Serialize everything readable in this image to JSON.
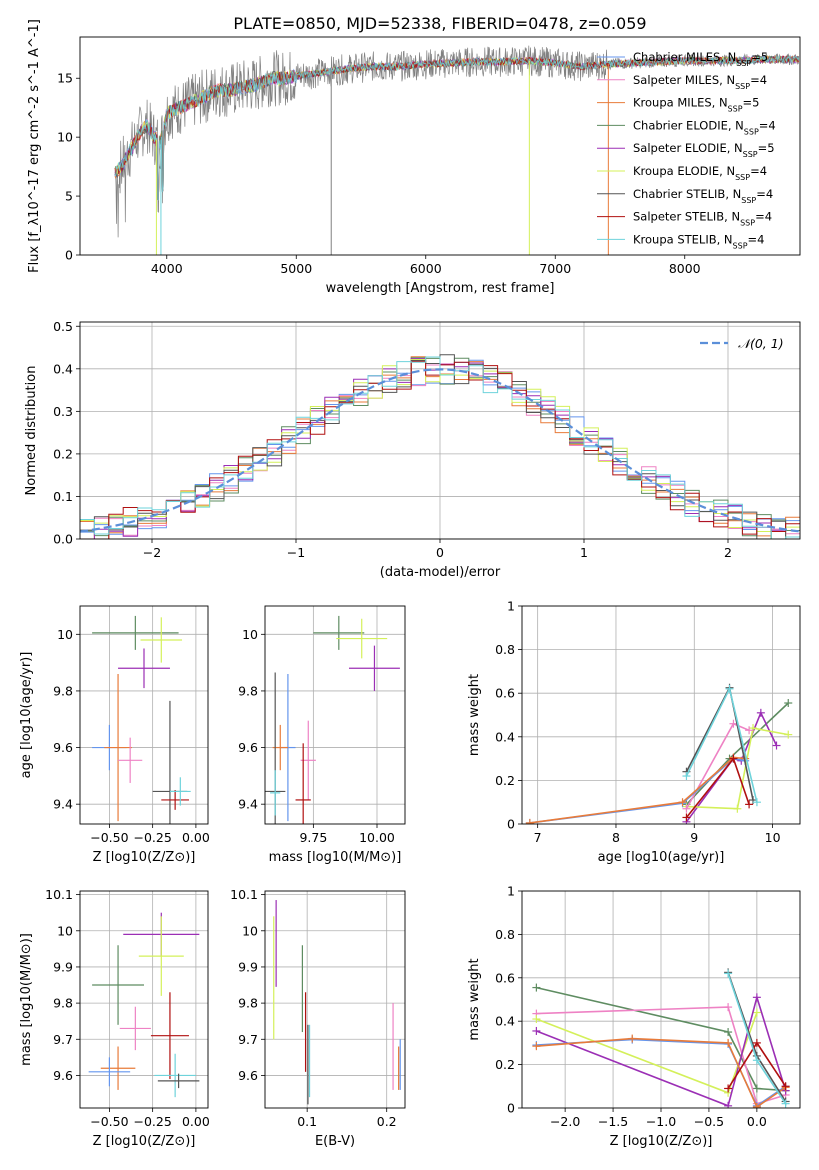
{
  "figure_title": "PLATE=0850, MJD=52338, FIBERID=0478, z=0.059",
  "colors": {
    "data": "#808080",
    "Chabrier MILES": "#6495ed",
    "Salpeter MILES": "#ee82c4",
    "Kroupa MILES": "#e87b3a",
    "Chabrier ELODIE": "#5e8c61",
    "Salpeter ELODIE": "#9b2fb5",
    "Kroupa ELODIE": "#d4f05a",
    "Chabrier STELIB": "#555555",
    "Salpeter STELIB": "#b01010",
    "Kroupa STELIB": "#6ed3db",
    "gaussian": "#5b8fd9"
  },
  "chart_data": [
    {
      "id": "spectrum",
      "type": "line",
      "title": "",
      "xlabel": "wavelength [Angstrom, rest frame]",
      "ylabel": "Flux [f_λ10^-17 erg cm^-2 s^-1 A^-1]",
      "xlim": [
        3330,
        8890
      ],
      "ylim": [
        0,
        18.5
      ],
      "xticks": [
        4000,
        5000,
        6000,
        7000,
        8000
      ],
      "yticks": [
        0,
        5,
        10,
        15
      ],
      "grid": false,
      "legend_position": "bottom-right",
      "legend": [
        {
          "name": "Chabrier MILES",
          "nssp": "5"
        },
        {
          "name": "Salpeter MILES",
          "nssp": "4"
        },
        {
          "name": "Kroupa MILES",
          "nssp": "5"
        },
        {
          "name": "Chabrier ELODIE",
          "nssp": "4"
        },
        {
          "name": "Salpeter ELODIE",
          "nssp": "5"
        },
        {
          "name": "Kroupa ELODIE",
          "nssp": "4"
        },
        {
          "name": "Chabrier STELIB",
          "nssp": "4"
        },
        {
          "name": "Salpeter STELIB",
          "nssp": "4"
        },
        {
          "name": "Kroupa STELIB",
          "nssp": "4"
        }
      ],
      "series_x": [
        3600,
        3650,
        3700,
        3750,
        3800,
        3850,
        3900,
        3950,
        4000,
        4100,
        4200,
        4300,
        4400,
        4500,
        4600,
        4700,
        4800,
        4900,
        5000,
        5200,
        5400,
        5600,
        5800,
        6000,
        6200,
        6400,
        6600,
        6800,
        7000,
        7200,
        7400,
        7600,
        7800,
        8000,
        8200,
        8400,
        8600,
        8800
      ],
      "series_y": [
        7.0,
        7.5,
        8.5,
        9.5,
        10.5,
        11.0,
        10.0,
        9.5,
        12.0,
        12.5,
        13.0,
        13.5,
        14.0,
        14.0,
        14.3,
        14.5,
        15.0,
        15.0,
        15.2,
        15.5,
        15.8,
        16.0,
        16.0,
        16.2,
        16.3,
        16.4,
        16.4,
        16.5,
        16.3,
        16.0,
        16.2,
        16.3,
        16.4,
        16.5,
        16.5,
        16.5,
        16.6,
        16.6
      ]
    },
    {
      "id": "residuals",
      "type": "bar",
      "title": "",
      "xlabel": "(data-model)/error",
      "ylabel": "Normed distribution",
      "xlim": [
        -2.5,
        2.5
      ],
      "ylim": [
        0,
        0.51
      ],
      "xticks": [
        -2,
        -1,
        0,
        1,
        2
      ],
      "yticks": [
        0.0,
        0.1,
        0.2,
        0.3,
        0.4,
        0.5
      ],
      "grid": true,
      "legend_position": "top-right",
      "gaussian_label": "𝒩(0, 1)",
      "bin_width": 0.1
    },
    {
      "id": "age-vs-metallicity",
      "type": "scatter",
      "title": "",
      "xlabel": "Z [log10(Z/Z⊙)]",
      "ylabel": "age [log10(age/yr)]",
      "xlim": [
        -0.67,
        0.07
      ],
      "ylim": [
        9.33,
        10.1
      ],
      "xticks": [
        -0.5,
        -0.25,
        0.0
      ],
      "xticklabels": [
        "−0.50",
        "−0.25",
        "0.00"
      ],
      "yticks": [
        9.4,
        9.6,
        9.8,
        10.0
      ],
      "grid": true,
      "points": [
        {
          "series": "Chabrier ELODIE",
          "x": -0.35,
          "y": 10.005,
          "xerr": 0.25,
          "yerr": 0.06
        },
        {
          "series": "Kroupa ELODIE",
          "x": -0.2,
          "y": 9.98,
          "xerr": 0.12,
          "yerr": 0.08
        },
        {
          "series": "Salpeter ELODIE",
          "x": -0.3,
          "y": 9.88,
          "xerr": 0.15,
          "yerr": 0.07
        },
        {
          "series": "Chabrier MILES",
          "x": -0.5,
          "y": 9.6,
          "xerr": 0.1,
          "yerr": 0.08
        },
        {
          "series": "Kroupa MILES",
          "x": -0.45,
          "y": 9.6,
          "xerr": 0.08,
          "yerr": 0.26
        },
        {
          "series": "Salpeter MILES",
          "x": -0.38,
          "y": 9.555,
          "xerr": 0.07,
          "yerr": 0.08
        },
        {
          "series": "Chabrier STELIB",
          "x": -0.15,
          "y": 9.445,
          "xerr": 0.1,
          "yerr": 0.32
        },
        {
          "series": "Salpeter STELIB",
          "x": -0.12,
          "y": 9.415,
          "xerr": 0.08,
          "yerr": 0.035
        },
        {
          "series": "Kroupa STELIB",
          "x": -0.09,
          "y": 9.445,
          "xerr": 0.06,
          "yerr": 0.05
        }
      ]
    },
    {
      "id": "age-vs-mass",
      "type": "scatter",
      "title": "",
      "xlabel": "mass [log10(M/M⊙)]",
      "ylabel": "",
      "xlim": [
        9.56,
        10.11
      ],
      "ylim": [
        9.33,
        10.1
      ],
      "xticks": [
        9.75,
        10.0
      ],
      "xticklabels": [
        "9.75",
        "10.00"
      ],
      "yticks": [
        9.4,
        9.6,
        9.8,
        10.0
      ],
      "grid": true,
      "points": [
        {
          "series": "Chabrier ELODIE",
          "x": 9.85,
          "y": 10.005,
          "xerr": 0.1,
          "yerr": 0.06
        },
        {
          "series": "Kroupa ELODIE",
          "x": 9.94,
          "y": 9.985,
          "xerr": 0.1,
          "yerr": 0.07
        },
        {
          "series": "Salpeter ELODIE",
          "x": 9.99,
          "y": 9.88,
          "xerr": 0.1,
          "yerr": 0.08
        },
        {
          "series": "Chabrier MILES",
          "x": 9.65,
          "y": 9.6,
          "xerr": 0.03,
          "yerr": 0.26
        },
        {
          "series": "Kroupa MILES",
          "x": 9.62,
          "y": 9.6,
          "xerr": 0.03,
          "yerr": 0.08
        },
        {
          "series": "Salpeter MILES",
          "x": 9.73,
          "y": 9.555,
          "xerr": 0.03,
          "yerr": 0.14
        },
        {
          "series": "Chabrier STELIB",
          "x": 9.6,
          "y": 9.445,
          "xerr": 0.04,
          "yerr": 0.42
        },
        {
          "series": "Salpeter STELIB",
          "x": 9.71,
          "y": 9.415,
          "xerr": 0.03,
          "yerr": 0.2
        },
        {
          "series": "Kroupa STELIB",
          "x": 9.6,
          "y": 9.44,
          "xerr": 0.02,
          "yerr": 0.08
        }
      ]
    },
    {
      "id": "mass-weight-vs-age",
      "type": "line",
      "title": "",
      "xlabel": "age [log10(age/yr)]",
      "ylabel": "mass weight",
      "xlim": [
        6.8,
        10.35
      ],
      "ylim": [
        0,
        1
      ],
      "xticks": [
        7,
        8,
        9,
        10
      ],
      "yticks": [
        0.0,
        0.2,
        0.4,
        0.6,
        0.8,
        1.0
      ],
      "grid": true,
      "series": [
        {
          "series": "Chabrier ELODIE",
          "x": [
            8.9,
            9.45,
            10.2
          ],
          "y": [
            0.09,
            0.3,
            0.555
          ]
        },
        {
          "series": "Salpeter ELODIE",
          "x": [
            8.9,
            9.5,
            9.6,
            9.85,
            10.05
          ],
          "y": [
            0.01,
            0.3,
            0.29,
            0.51,
            0.36
          ]
        },
        {
          "series": "Kroupa ELODIE",
          "x": [
            8.9,
            9.55,
            9.75,
            10.2
          ],
          "y": [
            0.08,
            0.07,
            0.44,
            0.41
          ]
        },
        {
          "series": "Salpeter MILES",
          "x": [
            8.9,
            9.5,
            9.7
          ],
          "y": [
            0.07,
            0.46,
            0.43
          ]
        },
        {
          "series": "Chabrier MILES",
          "x": [
            6.9,
            8.85,
            9.5,
            9.65
          ],
          "y": [
            0.005,
            0.095,
            0.3,
            0.29
          ]
        },
        {
          "series": "Kroupa MILES",
          "x": [
            6.9,
            8.85,
            9.5,
            9.65
          ],
          "y": [
            0.005,
            0.1,
            0.305,
            0.3
          ]
        },
        {
          "series": "Chabrier STELIB",
          "x": [
            8.9,
            9.45,
            9.75
          ],
          "y": [
            0.24,
            0.625,
            0.11
          ]
        },
        {
          "series": "Salpeter STELIB",
          "x": [
            8.9,
            9.5,
            9.7
          ],
          "y": [
            0.03,
            0.3,
            0.09
          ]
        },
        {
          "series": "Kroupa STELIB",
          "x": [
            8.9,
            9.45,
            9.8
          ],
          "y": [
            0.22,
            0.62,
            0.1
          ]
        }
      ]
    },
    {
      "id": "mass-vs-metallicity",
      "type": "scatter",
      "title": "",
      "xlabel": "Z [log10(Z/Z⊙)]",
      "ylabel": "mass [log10(M/M⊙)]",
      "xlim": [
        -0.67,
        0.07
      ],
      "ylim": [
        9.51,
        10.11
      ],
      "xticks": [
        -0.5,
        -0.25,
        0.0
      ],
      "xticklabels": [
        "−0.50",
        "−0.25",
        "0.00"
      ],
      "yticks": [
        9.6,
        9.7,
        9.8,
        9.9,
        10.0,
        10.1
      ],
      "grid": true,
      "points": [
        {
          "series": "Salpeter ELODIE",
          "x": -0.2,
          "y": 9.99,
          "xerr": 0.22,
          "yerr": 0.06
        },
        {
          "series": "Kroupa ELODIE",
          "x": -0.2,
          "y": 9.93,
          "xerr": 0.13,
          "yerr": 0.11
        },
        {
          "series": "Chabrier ELODIE",
          "x": -0.45,
          "y": 9.85,
          "xerr": 0.15,
          "yerr": 0.11
        },
        {
          "series": "Salpeter MILES",
          "x": -0.35,
          "y": 9.73,
          "xerr": 0.09,
          "yerr": 0.06
        },
        {
          "series": "Salpeter STELIB",
          "x": -0.15,
          "y": 9.71,
          "xerr": 0.11,
          "yerr": 0.12
        },
        {
          "series": "Kroupa MILES",
          "x": -0.45,
          "y": 9.62,
          "xerr": 0.1,
          "yerr": 0.06
        },
        {
          "series": "Chabrier MILES",
          "x": -0.5,
          "y": 9.61,
          "xerr": 0.12,
          "yerr": 0.04
        },
        {
          "series": "Kroupa STELIB",
          "x": -0.12,
          "y": 9.6,
          "xerr": 0.12,
          "yerr": 0.06
        },
        {
          "series": "Chabrier STELIB",
          "x": -0.1,
          "y": 9.585,
          "xerr": 0.12,
          "yerr": 0.02
        }
      ]
    },
    {
      "id": "mass-vs-extinction",
      "type": "scatter",
      "title": "",
      "xlabel": "E(B-V)",
      "ylabel": "",
      "xlim": [
        0.047,
        0.223
      ],
      "ylim": [
        9.51,
        10.11
      ],
      "xticks": [
        0.1,
        0.2
      ],
      "yticks": [
        9.6,
        9.7,
        9.8,
        9.9,
        10.0,
        10.1
      ],
      "grid": true,
      "points": [
        {
          "series": "Salpeter ELODIE",
          "x": 0.061,
          "y": 9.965,
          "xerr": 0,
          "yerr": 0.12
        },
        {
          "series": "Kroupa ELODIE",
          "x": 0.058,
          "y": 9.87,
          "xerr": 0,
          "yerr": 0.17
        },
        {
          "series": "Chabrier ELODIE",
          "x": 0.094,
          "y": 9.84,
          "xerr": 0,
          "yerr": 0.12
        },
        {
          "series": "Salpeter STELIB",
          "x": 0.098,
          "y": 9.72,
          "xerr": 0,
          "yerr": 0.11
        },
        {
          "series": "Chabrier STELIB",
          "x": 0.101,
          "y": 9.63,
          "xerr": 0,
          "yerr": 0.11
        },
        {
          "series": "Kroupa STELIB",
          "x": 0.103,
          "y": 9.64,
          "xerr": 0,
          "yerr": 0.1
        },
        {
          "series": "Salpeter MILES",
          "x": 0.208,
          "y": 9.68,
          "xerr": 0,
          "yerr": 0.12
        },
        {
          "series": "Kroupa MILES",
          "x": 0.215,
          "y": 9.62,
          "xerr": 0,
          "yerr": 0.06
        },
        {
          "series": "Chabrier MILES",
          "x": 0.217,
          "y": 9.63,
          "xerr": 0,
          "yerr": 0.07
        }
      ]
    },
    {
      "id": "mass-weight-vs-metallicity",
      "type": "line",
      "title": "",
      "xlabel": "Z [log10(Z/Z⊙)]",
      "ylabel": "mass weight",
      "xlim": [
        -2.45,
        0.45
      ],
      "ylim": [
        0,
        1
      ],
      "xticks": [
        -2.0,
        -1.5,
        -1.0,
        -0.5,
        0.0
      ],
      "xticklabels": [
        "−2.0",
        "−1.5",
        "−1.0",
        "−0.5",
        "0.0"
      ],
      "yticks": [
        0.0,
        0.2,
        0.4,
        0.6,
        0.8,
        1.0
      ],
      "grid": true,
      "series": [
        {
          "series": "Chabrier ELODIE",
          "x": [
            -2.3,
            -0.3,
            0.0,
            0.3
          ],
          "y": [
            0.555,
            0.35,
            0.09,
            0.08
          ]
        },
        {
          "series": "Salpeter MILES",
          "x": [
            -2.3,
            -0.3,
            0.0,
            0.3
          ],
          "y": [
            0.435,
            0.465,
            0.02,
            0.06
          ]
        },
        {
          "series": "Kroupa ELODIE",
          "x": [
            -2.3,
            -0.3,
            0.0
          ],
          "y": [
            0.41,
            0.07,
            0.44
          ]
        },
        {
          "series": "Salpeter ELODIE",
          "x": [
            -2.3,
            -0.3,
            0.0,
            0.3
          ],
          "y": [
            0.355,
            0.01,
            0.51,
            0.08
          ]
        },
        {
          "series": "Chabrier MILES",
          "x": [
            -2.3,
            -1.3,
            -0.3,
            0.0,
            0.3
          ],
          "y": [
            0.29,
            0.315,
            0.295,
            0.01,
            0.1
          ]
        },
        {
          "series": "Kroupa MILES",
          "x": [
            -2.3,
            -1.3,
            -0.3,
            0.0,
            0.3
          ],
          "y": [
            0.285,
            0.32,
            0.3,
            0.005,
            0.095
          ]
        },
        {
          "series": "Chabrier STELIB",
          "x": [
            -0.3,
            0.0,
            0.3
          ],
          "y": [
            0.625,
            0.24,
            0.03
          ]
        },
        {
          "series": "Salpeter STELIB",
          "x": [
            -0.3,
            0.0,
            0.3
          ],
          "y": [
            0.09,
            0.3,
            0.1
          ]
        },
        {
          "series": "Kroupa STELIB",
          "x": [
            -0.3,
            0.0,
            0.3
          ],
          "y": [
            0.62,
            0.22,
            0.02
          ]
        }
      ]
    }
  ]
}
